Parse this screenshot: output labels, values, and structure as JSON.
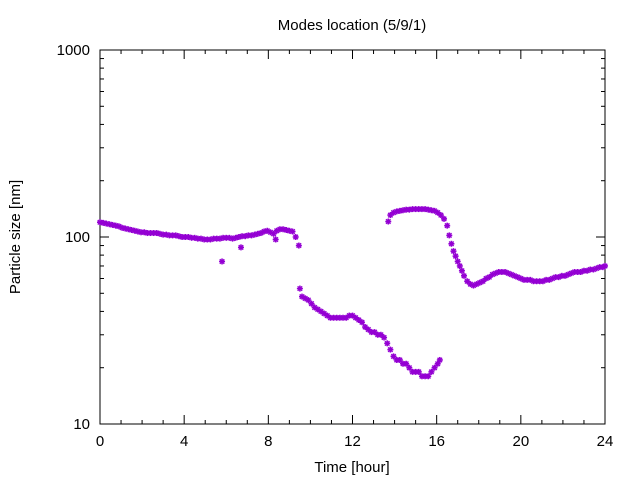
{
  "chart_data": {
    "type": "scatter",
    "title": "Modes location (5/9/1)",
    "xlabel": "Time [hour]",
    "ylabel": "Particle size [nm]",
    "xlim": [
      0,
      24
    ],
    "ylim": [
      10,
      1000
    ],
    "yscale": "log",
    "grid": false,
    "marker_color": "#9400d3",
    "x_ticks": [
      {
        "value": 0,
        "label": "0"
      },
      {
        "value": 4,
        "label": "4"
      },
      {
        "value": 8,
        "label": "8"
      },
      {
        "value": 12,
        "label": "12"
      },
      {
        "value": 16,
        "label": "16"
      },
      {
        "value": 20,
        "label": "20"
      },
      {
        "value": 24,
        "label": "24"
      }
    ],
    "y_ticks": [
      {
        "value": 10,
        "label": "10"
      },
      {
        "value": 100,
        "label": "100"
      },
      {
        "value": 1000,
        "label": "1000"
      }
    ],
    "points": [
      [
        0.0,
        120
      ],
      [
        0.15,
        119
      ],
      [
        0.3,
        118
      ],
      [
        0.45,
        117
      ],
      [
        0.6,
        116
      ],
      [
        0.75,
        115
      ],
      [
        0.9,
        114
      ],
      [
        1.05,
        112
      ],
      [
        1.2,
        111
      ],
      [
        1.35,
        110
      ],
      [
        1.5,
        109
      ],
      [
        1.65,
        108
      ],
      [
        1.8,
        107
      ],
      [
        1.95,
        106
      ],
      [
        2.1,
        106
      ],
      [
        2.25,
        105
      ],
      [
        2.4,
        105
      ],
      [
        2.55,
        105
      ],
      [
        2.7,
        105
      ],
      [
        2.85,
        104
      ],
      [
        3.0,
        103
      ],
      [
        3.15,
        103
      ],
      [
        3.3,
        102
      ],
      [
        3.45,
        102
      ],
      [
        3.6,
        102
      ],
      [
        3.75,
        101
      ],
      [
        3.9,
        100
      ],
      [
        4.05,
        100
      ],
      [
        4.2,
        100
      ],
      [
        4.35,
        99
      ],
      [
        4.5,
        99
      ],
      [
        4.65,
        98
      ],
      [
        4.8,
        98
      ],
      [
        4.95,
        97
      ],
      [
        5.1,
        97
      ],
      [
        5.25,
        97
      ],
      [
        5.4,
        98
      ],
      [
        5.55,
        98
      ],
      [
        5.7,
        98
      ],
      [
        5.85,
        99
      ],
      [
        6.0,
        99
      ],
      [
        6.15,
        99
      ],
      [
        6.3,
        98
      ],
      [
        6.45,
        99
      ],
      [
        6.6,
        100
      ],
      [
        6.75,
        101
      ],
      [
        6.9,
        101
      ],
      [
        7.05,
        102
      ],
      [
        7.2,
        102
      ],
      [
        7.35,
        103
      ],
      [
        7.5,
        104
      ],
      [
        7.65,
        105
      ],
      [
        7.8,
        107
      ],
      [
        7.95,
        108
      ],
      [
        8.1,
        106
      ],
      [
        8.25,
        104
      ],
      [
        8.4,
        108
      ],
      [
        8.55,
        110
      ],
      [
        8.7,
        110
      ],
      [
        8.85,
        109
      ],
      [
        9.0,
        108
      ],
      [
        9.15,
        107
      ],
      [
        9.3,
        100
      ],
      [
        9.45,
        90
      ],
      [
        5.8,
        74
      ],
      [
        6.7,
        88
      ],
      [
        8.35,
        97
      ],
      [
        9.5,
        53
      ],
      [
        9.6,
        48
      ],
      [
        9.75,
        47
      ],
      [
        9.9,
        46
      ],
      [
        10.05,
        44
      ],
      [
        10.2,
        42
      ],
      [
        10.35,
        41
      ],
      [
        10.5,
        40
      ],
      [
        10.65,
        39
      ],
      [
        10.8,
        38
      ],
      [
        10.95,
        37
      ],
      [
        11.1,
        37
      ],
      [
        11.25,
        37
      ],
      [
        11.4,
        37
      ],
      [
        11.55,
        37
      ],
      [
        11.7,
        37
      ],
      [
        11.85,
        38
      ],
      [
        12.0,
        38
      ],
      [
        12.15,
        37
      ],
      [
        12.3,
        36
      ],
      [
        12.45,
        35
      ],
      [
        12.6,
        33
      ],
      [
        12.75,
        32
      ],
      [
        12.9,
        31
      ],
      [
        13.05,
        31
      ],
      [
        13.2,
        30
      ],
      [
        13.35,
        30
      ],
      [
        13.5,
        29
      ],
      [
        13.65,
        27
      ],
      [
        13.8,
        25
      ],
      [
        13.95,
        23
      ],
      [
        14.1,
        22
      ],
      [
        14.25,
        22
      ],
      [
        14.4,
        21
      ],
      [
        14.55,
        21
      ],
      [
        14.7,
        20
      ],
      [
        14.85,
        19
      ],
      [
        15.0,
        19
      ],
      [
        15.15,
        19
      ],
      [
        15.3,
        18
      ],
      [
        15.45,
        18
      ],
      [
        15.6,
        18
      ],
      [
        15.75,
        19
      ],
      [
        15.9,
        20
      ],
      [
        16.05,
        21
      ],
      [
        16.15,
        22
      ],
      [
        13.7,
        121
      ],
      [
        13.8,
        131
      ],
      [
        13.95,
        135
      ],
      [
        14.1,
        137
      ],
      [
        14.25,
        138
      ],
      [
        14.4,
        139
      ],
      [
        14.55,
        140
      ],
      [
        14.7,
        140
      ],
      [
        14.85,
        141
      ],
      [
        15.0,
        141
      ],
      [
        15.15,
        141
      ],
      [
        15.3,
        141
      ],
      [
        15.45,
        141
      ],
      [
        15.6,
        140
      ],
      [
        15.75,
        139
      ],
      [
        15.9,
        138
      ],
      [
        16.05,
        135
      ],
      [
        16.2,
        131
      ],
      [
        16.35,
        125
      ],
      [
        16.5,
        115
      ],
      [
        16.6,
        102
      ],
      [
        16.7,
        92
      ],
      [
        16.8,
        84
      ],
      [
        16.9,
        79
      ],
      [
        17.0,
        74
      ],
      [
        17.1,
        70
      ],
      [
        17.2,
        66
      ],
      [
        17.3,
        62
      ],
      [
        17.45,
        58
      ],
      [
        17.6,
        56
      ],
      [
        17.75,
        55
      ],
      [
        17.9,
        56
      ],
      [
        18.05,
        57
      ],
      [
        18.2,
        58
      ],
      [
        18.35,
        60
      ],
      [
        18.5,
        61
      ],
      [
        18.65,
        63
      ],
      [
        18.8,
        64
      ],
      [
        18.95,
        65
      ],
      [
        19.1,
        65
      ],
      [
        19.25,
        65
      ],
      [
        19.4,
        64
      ],
      [
        19.55,
        63
      ],
      [
        19.7,
        62
      ],
      [
        19.85,
        61
      ],
      [
        20.0,
        60
      ],
      [
        20.15,
        59
      ],
      [
        20.3,
        59
      ],
      [
        20.45,
        59
      ],
      [
        20.6,
        58
      ],
      [
        20.75,
        58
      ],
      [
        20.9,
        58
      ],
      [
        21.05,
        58
      ],
      [
        21.2,
        59
      ],
      [
        21.35,
        59
      ],
      [
        21.5,
        60
      ],
      [
        21.65,
        61
      ],
      [
        21.8,
        61
      ],
      [
        21.95,
        62
      ],
      [
        22.1,
        62
      ],
      [
        22.25,
        63
      ],
      [
        22.4,
        64
      ],
      [
        22.55,
        65
      ],
      [
        22.7,
        65
      ],
      [
        22.85,
        65
      ],
      [
        23.0,
        66
      ],
      [
        23.15,
        66
      ],
      [
        23.3,
        67
      ],
      [
        23.45,
        67
      ],
      [
        23.6,
        68
      ],
      [
        23.75,
        69
      ],
      [
        23.9,
        69
      ],
      [
        24.0,
        70
      ]
    ]
  }
}
